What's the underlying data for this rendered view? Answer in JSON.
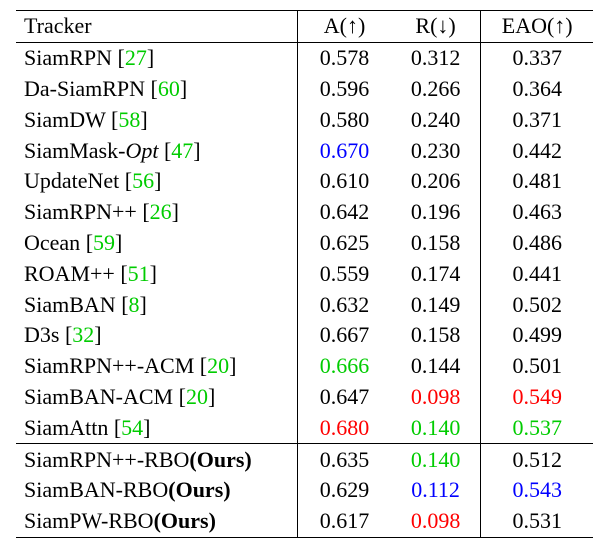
{
  "header": {
    "tracker": "Tracker",
    "a": "A(↑)",
    "r": "R(↓)",
    "eao": "EAO(↑)"
  },
  "rows": [
    {
      "name": "SiamRPN",
      "ref": "27",
      "a": "0.578",
      "r": "0.312",
      "eao": "0.337"
    },
    {
      "name": "Da-SiamRPN",
      "ref": "60",
      "a": "0.596",
      "r": "0.266",
      "eao": "0.364"
    },
    {
      "name": "SiamDW",
      "ref": "58",
      "a": "0.580",
      "r": "0.240",
      "eao": "0.371"
    },
    {
      "name": "SiamMask-",
      "name_italic": "Opt",
      "ref": "47",
      "a": "0.670",
      "r": "0.230",
      "eao": "0.442"
    },
    {
      "name": "UpdateNet",
      "ref": "56",
      "a": "0.610",
      "r": "0.206",
      "eao": "0.481"
    },
    {
      "name": "SiamRPN++",
      "ref": "26",
      "a": "0.642",
      "r": "0.196",
      "eao": "0.463"
    },
    {
      "name": "Ocean",
      "ref": "59",
      "a": "0.625",
      "r": "0.158",
      "eao": "0.486"
    },
    {
      "name": "ROAM++",
      "ref": "51",
      "a": "0.559",
      "r": "0.174",
      "eao": "0.441"
    },
    {
      "name": "SiamBAN",
      "ref": "8",
      "a": "0.632",
      "r": "0.149",
      "eao": "0.502"
    },
    {
      "name": "D3s",
      "ref": "32",
      "a": "0.667",
      "r": "0.158",
      "eao": "0.499"
    },
    {
      "name": "SiamRPN++-ACM",
      "ref": "20",
      "a": "0.666",
      "r": "0.144",
      "eao": "0.501"
    },
    {
      "name": "SiamBAN-ACM",
      "ref": "20",
      "a": "0.647",
      "r": "0.098",
      "eao": "0.549"
    },
    {
      "name": "SiamAttn",
      "ref": "54",
      "a": "0.680",
      "r": "0.140",
      "eao": "0.537"
    }
  ],
  "ours_rows": [
    {
      "name": "SiamRPN++-RBO",
      "ours": "(Ours)",
      "a": "0.635",
      "r": "0.140",
      "eao": "0.512"
    },
    {
      "name": "SiamBAN-RBO",
      "ours": "(Ours)",
      "a": "0.629",
      "r": "0.112",
      "eao": "0.543"
    },
    {
      "name": "SiamPW-RBO",
      "ours": "(Ours)",
      "a": "0.617",
      "r": "0.098",
      "eao": "0.531"
    }
  ],
  "colors": {
    "red": "#ff0000",
    "green": "#00cc00",
    "blue": "#0000ff",
    "reference": "#00cc00"
  }
}
